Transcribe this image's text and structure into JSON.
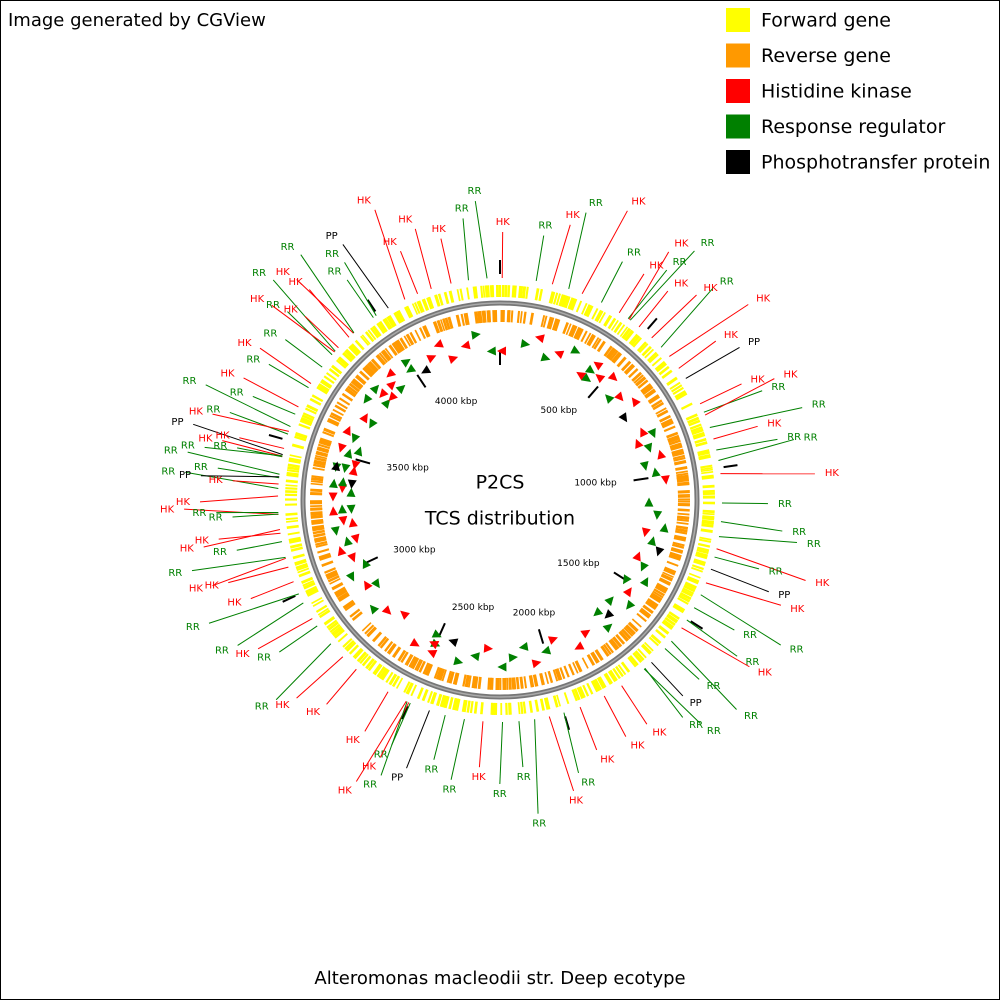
{
  "header": {
    "credit": "Image generated by CGView"
  },
  "legend": [
    {
      "label": "Forward gene",
      "color": "#ffff00"
    },
    {
      "label": "Reverse gene",
      "color": "#ff9900"
    },
    {
      "label": "Histidine kinase",
      "color": "#ff0000",
      "tag": "HK",
      "positions_kbp": [
        7,
        167,
        266,
        398,
        436,
        475,
        528,
        609,
        657,
        788,
        827,
        907,
        1019,
        1258,
        1371,
        1533,
        1798,
        1862,
        1946,
        2048,
        2259,
        2502,
        2511,
        2576,
        2699,
        2757,
        2912,
        3043,
        3092,
        3121,
        3202,
        3214,
        3262,
        3320,
        3358,
        3447,
        3472,
        3528,
        3611,
        3695,
        3820,
        3838,
        3885,
        3904,
        4099,
        4143,
        4189,
        4254
      ]
    },
    {
      "label": "Response regulator",
      "color": "#008000",
      "tag": "RR",
      "positions_kbp": [
        115,
        221,
        333,
        432,
        440,
        570,
        817,
        869,
        943,
        977,
        1112,
        1171,
        1219,
        1285,
        1412,
        1458,
        1503,
        1586,
        1617,
        1706,
        1709,
        2000,
        2095,
        2145,
        2197,
        2318,
        2380,
        2497,
        2508,
        2813,
        2884,
        2969,
        3001,
        3124,
        3175,
        3263,
        3268,
        3344,
        3378,
        3389,
        3445,
        3448,
        3519,
        3544,
        3586,
        3680,
        3758,
        3808,
        3823,
        3906,
        3984,
        3995,
        4310,
        4369
      ]
    },
    {
      "label": "Phosphotransfer protein",
      "color": "#000000",
      "tag": "PP",
      "positions_kbp": [
        696,
        1325,
        1678,
        2432,
        3381,
        3452,
        4040
      ]
    }
  ],
  "map": {
    "title": "P2CS",
    "subtitle": "TCS distribution",
    "range_kbp": [
      0,
      4410
    ],
    "ticks": [
      {
        "value": 500,
        "label": "500 kbp"
      },
      {
        "value": 1000,
        "label": "1000 kbp"
      },
      {
        "value": 1500,
        "label": "1500 kbp"
      },
      {
        "value": 2000,
        "label": "2000 kbp"
      },
      {
        "value": 2500,
        "label": "2500 kbp"
      },
      {
        "value": 3000,
        "label": "3000 kbp"
      },
      {
        "value": 3500,
        "label": "3500 kbp"
      },
      {
        "value": 4000,
        "label": "4000 kbp"
      }
    ]
  },
  "footer": "Alteromonas macleodii str. Deep ecotype"
}
